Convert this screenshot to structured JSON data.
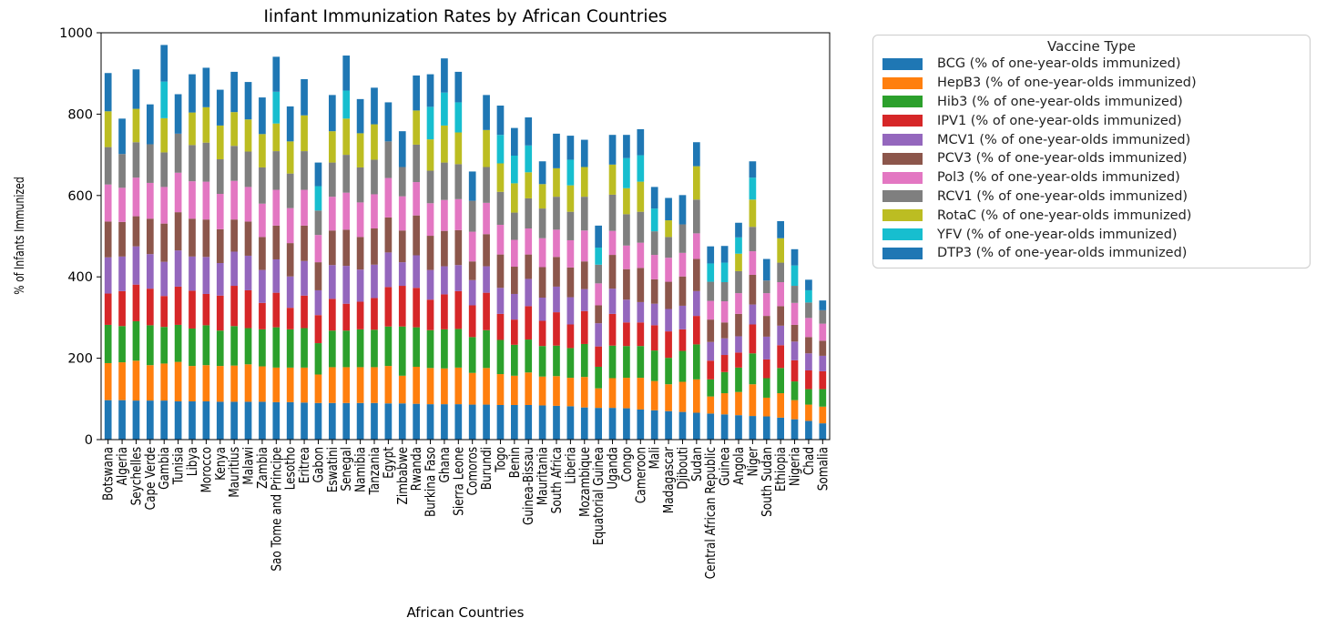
{
  "chart_data": {
    "type": "bar",
    "stacked": true,
    "title": "Iinfant Immunization Rates by African Countries",
    "xlabel": "African Countries",
    "ylabel": "% of Infants Immunized",
    "ylim": [
      0,
      1000
    ],
    "yticks": [
      0,
      200,
      400,
      600,
      800,
      1000
    ],
    "grid": false,
    "legend_title": "Vaccine Type",
    "legend_position": "outside-right",
    "categories": [
      "Botswana",
      "Algeria",
      "Seychelles",
      "Cape Verde",
      "Gambia",
      "Tunisia",
      "Libya",
      "Morocco",
      "Kenya",
      "Mauritius",
      "Malawi",
      "Zambia",
      "Sao Tome and Principe",
      "Lesotho",
      "Eritrea",
      "Gabon",
      "Eswatini",
      "Senegal",
      "Namibia",
      "Tanzania",
      "Egypt",
      "Zimbabwe",
      "Rwanda",
      "Burkina Faso",
      "Ghana",
      "Sierra Leone",
      "Comoros",
      "Burundi",
      "Togo",
      "Benin",
      "Guinea-Bissau",
      "Mauritania",
      "South Africa",
      "Liberia",
      "Mozambique",
      "Equatorial Guinea",
      "Uganda",
      "Congo",
      "Cameroon",
      "Mali",
      "Madagascar",
      "Djibouti",
      "Sudan",
      "Central African Republic",
      "Guinea",
      "Angola",
      "Niger",
      "South Sudan",
      "Ethiopia",
      "Nigeria",
      "Chad",
      "Somalia"
    ],
    "series": [
      {
        "name": "BCG (% of one-year-olds immunized)",
        "color": "#1f77b4",
        "values": [
          97,
          97,
          96,
          96,
          96,
          94,
          94,
          94,
          93,
          93,
          93,
          93,
          92,
          92,
          91,
          90,
          90,
          90,
          90,
          90,
          89,
          89,
          88,
          87,
          87,
          87,
          86,
          86,
          85,
          85,
          85,
          84,
          83,
          82,
          79,
          78,
          78,
          77,
          74,
          72,
          70,
          68,
          66,
          64,
          62,
          60,
          58,
          57,
          54,
          50,
          46,
          40
        ]
      },
      {
        "name": "HepB3 (% of one-year-olds immunized)",
        "color": "#ff7f0e",
        "values": [
          91,
          93,
          98,
          87,
          91,
          97,
          87,
          89,
          88,
          89,
          92,
          87,
          85,
          85,
          86,
          70,
          88,
          88,
          88,
          88,
          92,
          68,
          91,
          89,
          88,
          90,
          78,
          90,
          76,
          72,
          80,
          71,
          73,
          70,
          75,
          48,
          73,
          75,
          78,
          72,
          66,
          74,
          82,
          42,
          52,
          57,
          78,
          46,
          60,
          47,
          40,
          41
        ]
      },
      {
        "name": "Hib3 (% of one-year-olds immunized)",
        "color": "#2ca02c",
        "values": [
          94,
          89,
          97,
          98,
          90,
          91,
          92,
          98,
          87,
          97,
          89,
          91,
          99,
          94,
          97,
          77,
          90,
          90,
          93,
          92,
          97,
          121,
          97,
          93,
          96,
          95,
          88,
          93,
          84,
          76,
          81,
          75,
          75,
          73,
          81,
          53,
          80,
          78,
          78,
          75,
          65,
          76,
          86,
          42,
          52,
          60,
          76,
          48,
          62,
          46,
          38,
          43
        ]
      },
      {
        "name": "IPV1 (% of one-year-olds immunized)",
        "color": "#d62728",
        "values": [
          77,
          86,
          90,
          90,
          76,
          94,
          93,
          77,
          86,
          99,
          93,
          65,
          85,
          53,
          80,
          69,
          78,
          66,
          68,
          78,
          97,
          100,
          97,
          75,
          86,
          93,
          78,
          92,
          64,
          62,
          82,
          62,
          82,
          58,
          81,
          50,
          78,
          58,
          58,
          62,
          65,
          53,
          70,
          46,
          42,
          37,
          71,
          46,
          56,
          52,
          46,
          44
        ]
      },
      {
        "name": "MCV1 (% of one-year-olds immunized)",
        "color": "#9467bd",
        "values": [
          89,
          85,
          94,
          85,
          84,
          89,
          84,
          91,
          80,
          84,
          85,
          81,
          82,
          77,
          85,
          61,
          83,
          93,
          79,
          82,
          85,
          58,
          80,
          73,
          69,
          64,
          62,
          65,
          64,
          63,
          67,
          57,
          63,
          67,
          54,
          57,
          62,
          56,
          50,
          53,
          55,
          58,
          61,
          46,
          41,
          40,
          49,
          56,
          48,
          46,
          42,
          38
        ]
      },
      {
        "name": "PCV3 (% of one-year-olds immunized)",
        "color": "#8c564b",
        "values": [
          88,
          85,
          74,
          87,
          94,
          94,
          93,
          92,
          83,
          79,
          84,
          81,
          83,
          82,
          87,
          69,
          85,
          89,
          80,
          89,
          86,
          78,
          98,
          84,
          87,
          86,
          46,
          79,
          82,
          67,
          60,
          75,
          73,
          73,
          68,
          44,
          83,
          75,
          84,
          60,
          67,
          72,
          79,
          55,
          39,
          55,
          73,
          51,
          48,
          41,
          40,
          37
        ]
      },
      {
        "name": "Pol3 (% of one-year-olds immunized)",
        "color": "#e377c2",
        "values": [
          91,
          84,
          95,
          88,
          90,
          97,
          92,
          93,
          87,
          95,
          85,
          82,
          88,
          86,
          88,
          67,
          83,
          91,
          85,
          84,
          97,
          84,
          82,
          80,
          76,
          76,
          73,
          77,
          73,
          66,
          64,
          71,
          67,
          67,
          76,
          54,
          59,
          58,
          62,
          60,
          59,
          58,
          63,
          46,
          52,
          51,
          58,
          56,
          59,
          54,
          47,
          42
        ]
      },
      {
        "name": "RCV1 (% of one-year-olds immunized)",
        "color": "#7f7f7f",
        "values": [
          92,
          83,
          87,
          95,
          85,
          96,
          89,
          96,
          85,
          86,
          87,
          89,
          95,
          85,
          95,
          60,
          84,
          93,
          86,
          85,
          90,
          72,
          92,
          80,
          92,
          86,
          76,
          88,
          81,
          67,
          74,
          73,
          81,
          70,
          83,
          46,
          89,
          77,
          76,
          58,
          51,
          70,
          83,
          47,
          47,
          54,
          60,
          31,
          48,
          42,
          38,
          33
        ]
      },
      {
        "name": "RotaC (% of one-year-olds immunized)",
        "color": "#bcbd22",
        "values": [
          88,
          0,
          82,
          0,
          84,
          0,
          80,
          87,
          83,
          83,
          79,
          82,
          68,
          79,
          88,
          0,
          77,
          89,
          84,
          87,
          0,
          0,
          84,
          77,
          91,
          78,
          0,
          91,
          70,
          72,
          64,
          60,
          70,
          65,
          73,
          0,
          74,
          64,
          74,
          0,
          41,
          0,
          82,
          0,
          0,
          43,
          67,
          0,
          60,
          0,
          0,
          0
        ]
      },
      {
        "name": "YFV (% of one-year-olds immunized)",
        "color": "#17becf",
        "values": [
          0,
          0,
          0,
          0,
          90,
          0,
          0,
          0,
          0,
          0,
          0,
          0,
          78,
          0,
          0,
          60,
          0,
          69,
          0,
          0,
          0,
          0,
          0,
          80,
          81,
          74,
          0,
          0,
          70,
          68,
          66,
          0,
          0,
          63,
          0,
          42,
          0,
          74,
          65,
          56,
          0,
          0,
          0,
          45,
          48,
          40,
          54,
          0,
          0,
          50,
          30,
          0
        ]
      },
      {
        "name": "DTP3 (% of one-year-olds immunized)",
        "color": "#1f77b4",
        "values": [
          94,
          87,
          97,
          98,
          90,
          97,
          94,
          97,
          88,
          99,
          92,
          90,
          86,
          86,
          89,
          58,
          89,
          86,
          84,
          90,
          96,
          88,
          86,
          80,
          84,
          75,
          72,
          86,
          72,
          68,
          69,
          56,
          85,
          59,
          67,
          54,
          73,
          57,
          64,
          53,
          55,
          72,
          59,
          42,
          41,
          36,
          40,
          53,
          42,
          40,
          26,
          24
        ]
      }
    ]
  }
}
